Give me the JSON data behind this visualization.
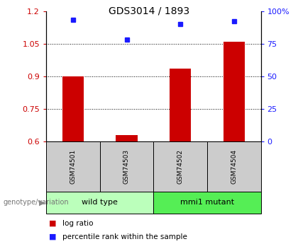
{
  "title": "GDS3014 / 1893",
  "samples": [
    "GSM74501",
    "GSM74503",
    "GSM74502",
    "GSM74504"
  ],
  "log_ratio": [
    0.9,
    0.63,
    0.935,
    1.06
  ],
  "percentile_rank": [
    93,
    78,
    90,
    92
  ],
  "groups": [
    {
      "label": "wild type",
      "samples": [
        0,
        1
      ],
      "color": "#bbffbb"
    },
    {
      "label": "mmi1 mutant",
      "samples": [
        2,
        3
      ],
      "color": "#55ee55"
    }
  ],
  "ylim_left": [
    0.6,
    1.2
  ],
  "ylim_right": [
    0,
    100
  ],
  "yticks_left": [
    0.6,
    0.75,
    0.9,
    1.05,
    1.2
  ],
  "yticks_right": [
    0,
    25,
    50,
    75,
    100
  ],
  "ytick_labels_left": [
    "0.6",
    "0.75",
    "0.9",
    "1.05",
    "1.2"
  ],
  "ytick_labels_right": [
    "0",
    "25",
    "50",
    "75",
    "100%"
  ],
  "bar_color": "#cc0000",
  "dot_color": "#1a1aff",
  "bar_width": 0.4,
  "background_color": "#ffffff",
  "sample_box_color": "#cccccc",
  "group_label": "genotype/variation"
}
